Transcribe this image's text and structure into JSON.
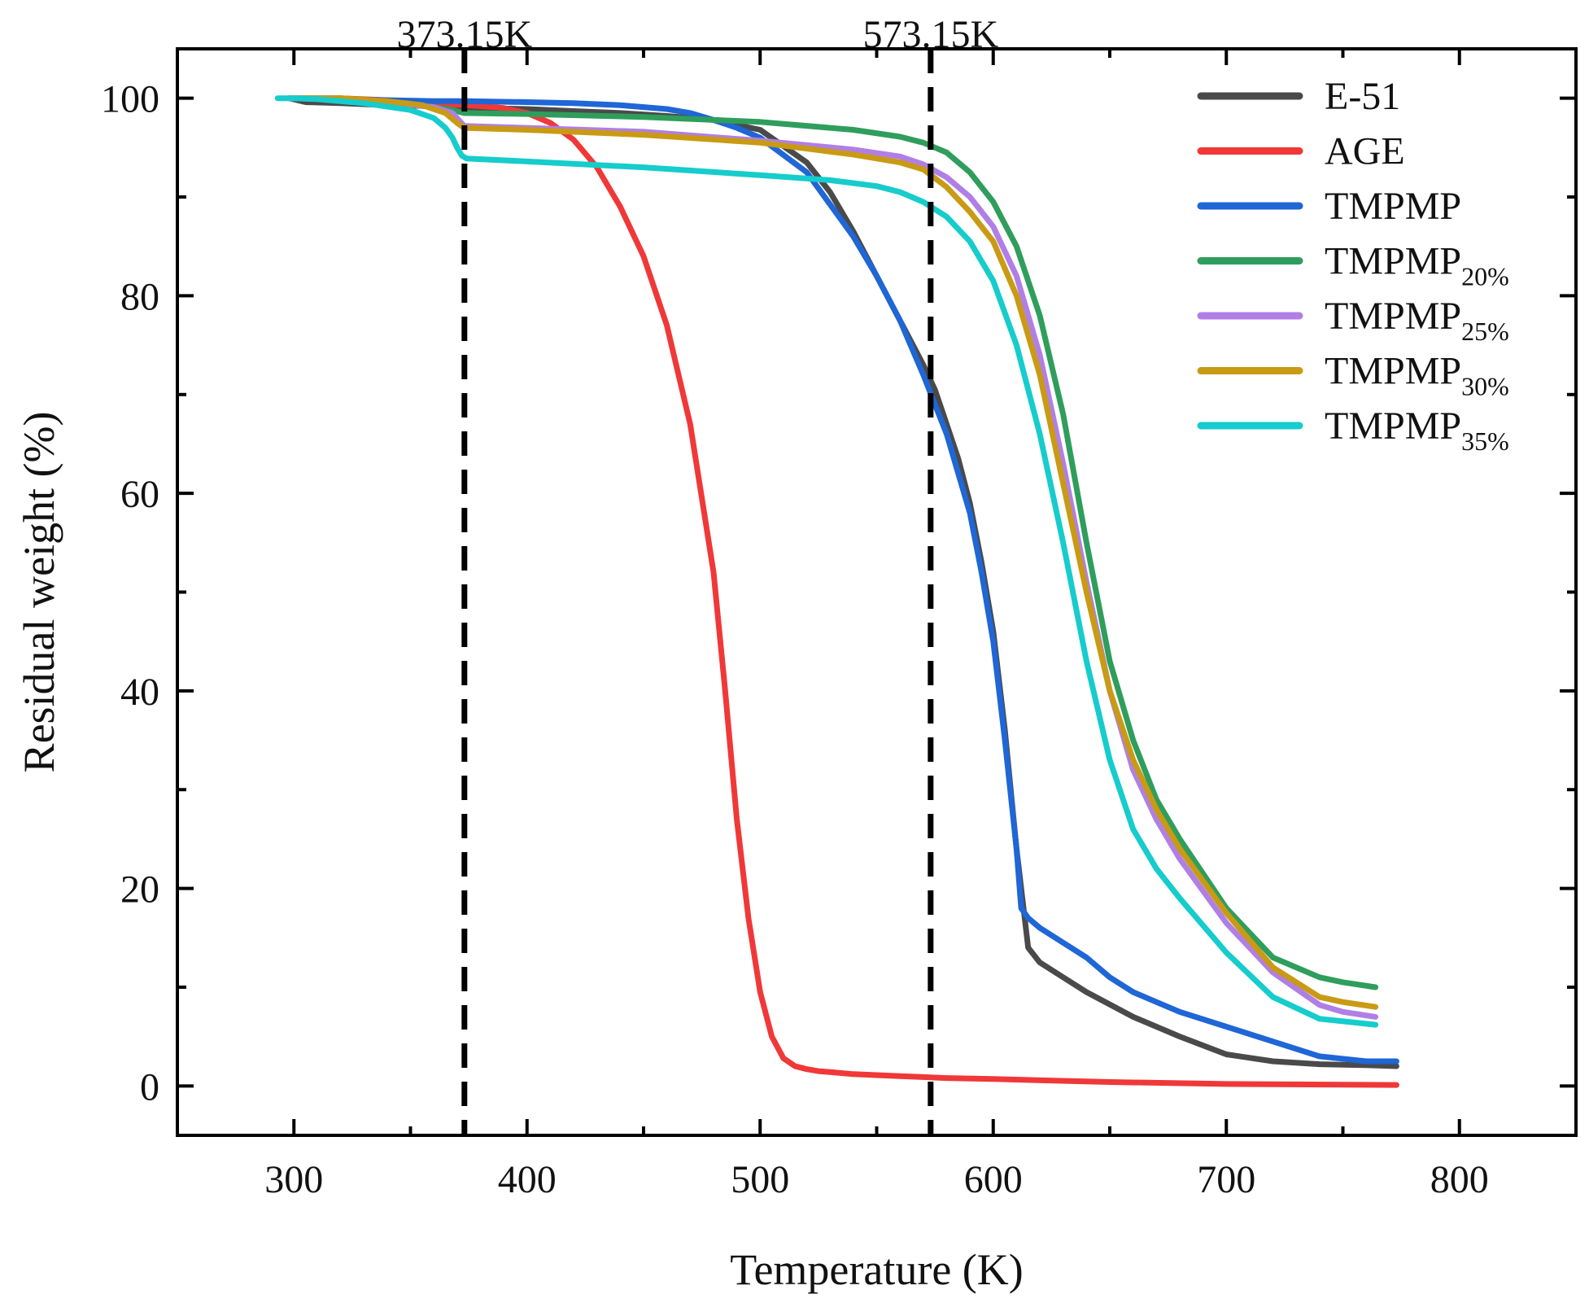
{
  "chart_data": {
    "type": "line",
    "title": "",
    "xlabel": "Temperature (K)",
    "ylabel": "Residual weight (%)",
    "xlim": [
      250,
      850
    ],
    "ylim": [
      -5,
      105
    ],
    "xticks": [
      300,
      400,
      500,
      600,
      700,
      800
    ],
    "yticks": [
      0,
      20,
      40,
      60,
      80,
      100
    ],
    "grid": false,
    "legend_position": "top-right",
    "vlines": [
      {
        "x": 373.15,
        "label": "373.15K"
      },
      {
        "x": 573.15,
        "label": "573.15K"
      }
    ],
    "series": [
      {
        "name": "E-51",
        "label_main": "E-51",
        "label_sub": "",
        "color": "#4a4a4a",
        "x": [
          298,
          305,
          320,
          340,
          360,
          373,
          380,
          400,
          420,
          440,
          460,
          480,
          500,
          520,
          530,
          540,
          550,
          560,
          570,
          575,
          580,
          585,
          590,
          595,
          600,
          605,
          610,
          615,
          620,
          630,
          640,
          660,
          680,
          700,
          720,
          740,
          760,
          773
        ],
        "y": [
          100,
          99.6,
          99.5,
          99.3,
          99.2,
          99.1,
          99,
          98.9,
          98.7,
          98.5,
          98.2,
          97.8,
          96.8,
          93.5,
          90.5,
          86.5,
          82,
          77.5,
          73,
          70.5,
          67,
          63.5,
          59,
          53,
          46,
          36,
          24,
          14,
          12.5,
          11,
          9.5,
          7,
          5,
          3.2,
          2.5,
          2.2,
          2.1,
          2
        ]
      },
      {
        "name": "AGE",
        "label_main": "AGE",
        "label_sub": "",
        "color": "#f03838",
        "x": [
          298,
          320,
          340,
          360,
          373,
          380,
          390,
          400,
          410,
          420,
          430,
          440,
          450,
          460,
          470,
          480,
          485,
          490,
          495,
          500,
          505,
          510,
          515,
          520,
          525,
          530,
          540,
          560,
          580,
          600,
          650,
          700,
          773
        ],
        "y": [
          100,
          100,
          99.8,
          99.5,
          99.3,
          99.2,
          99,
          98.5,
          97.5,
          95.8,
          93,
          89,
          84,
          77,
          67,
          52,
          40,
          27,
          17,
          9.5,
          5,
          2.8,
          2,
          1.7,
          1.5,
          1.4,
          1.2,
          1,
          0.8,
          0.7,
          0.4,
          0.2,
          0.1
        ]
      },
      {
        "name": "TMPMP",
        "label_main": "TMPMP",
        "label_sub": "",
        "color": "#1f66d6",
        "x": [
          298,
          320,
          340,
          360,
          373,
          400,
          420,
          440,
          460,
          470,
          480,
          490,
          500,
          520,
          540,
          550,
          560,
          570,
          575,
          580,
          585,
          590,
          595,
          600,
          605,
          610,
          612,
          615,
          620,
          630,
          640,
          650,
          660,
          670,
          680,
          700,
          720,
          740,
          760,
          773
        ],
        "y": [
          100,
          99.9,
          99.8,
          99.7,
          99.7,
          99.6,
          99.5,
          99.3,
          98.9,
          98.5,
          97.8,
          97,
          96,
          92.5,
          86,
          82,
          77.5,
          72,
          69,
          66,
          62,
          58,
          52,
          45,
          35,
          24,
          18,
          17,
          16,
          14.5,
          13,
          11,
          9.5,
          8.5,
          7.5,
          6,
          4.5,
          3,
          2.5,
          2.5
        ]
      },
      {
        "name": "TMPMP20%",
        "label_main": "TMPMP",
        "label_sub": "20%",
        "color": "#2f9e5c",
        "x": [
          298,
          320,
          340,
          360,
          368,
          373,
          400,
          450,
          500,
          540,
          560,
          570,
          580,
          590,
          600,
          610,
          620,
          630,
          640,
          650,
          660,
          670,
          680,
          700,
          720,
          740,
          750,
          764
        ],
        "y": [
          100,
          100,
          99.6,
          99.1,
          98.8,
          98.5,
          98.4,
          98.1,
          97.6,
          96.8,
          96.1,
          95.5,
          94.5,
          92.5,
          89.5,
          85,
          78,
          68,
          55,
          43,
          35,
          29,
          25,
          18,
          13,
          11,
          10.5,
          10
        ]
      },
      {
        "name": "TMPMP25%",
        "label_main": "TMPMP",
        "label_sub": "25%",
        "color": "#b07fe6",
        "x": [
          298,
          320,
          340,
          360,
          368,
          373,
          400,
          450,
          500,
          540,
          560,
          570,
          580,
          590,
          600,
          610,
          620,
          630,
          640,
          650,
          660,
          670,
          680,
          700,
          720,
          740,
          750,
          764
        ],
        "y": [
          100,
          100,
          99.6,
          99.1,
          98.5,
          97.2,
          97,
          96.6,
          95.7,
          94.8,
          94.1,
          93.3,
          92,
          90,
          87,
          82,
          74,
          63,
          51,
          40,
          32,
          27,
          23,
          16.5,
          11.5,
          8.2,
          7.5,
          7
        ]
      },
      {
        "name": "TMPMP30%",
        "label_main": "TMPMP",
        "label_sub": "30%",
        "color": "#c99a14",
        "x": [
          298,
          320,
          340,
          355,
          365,
          370,
          373,
          400,
          450,
          500,
          540,
          560,
          570,
          580,
          590,
          600,
          610,
          620,
          630,
          640,
          650,
          660,
          670,
          680,
          700,
          720,
          740,
          750,
          764
        ],
        "y": [
          100,
          100,
          99.7,
          99.3,
          98.5,
          97.5,
          97,
          96.8,
          96.3,
          95.5,
          94.3,
          93.5,
          92.8,
          91,
          88.5,
          85.5,
          80,
          72,
          61,
          50,
          40,
          33,
          28,
          24,
          17.5,
          12,
          9,
          8.5,
          8
        ]
      },
      {
        "name": "TMPMP35%",
        "label_main": "TMPMP",
        "label_sub": "35%",
        "color": "#16cccc",
        "x": [
          293,
          300,
          310,
          330,
          350,
          360,
          365,
          368,
          370,
          372,
          374,
          400,
          450,
          500,
          530,
          550,
          560,
          570,
          580,
          590,
          600,
          610,
          620,
          630,
          640,
          650,
          660,
          670,
          680,
          700,
          720,
          740,
          764
        ],
        "y": [
          100,
          100,
          99.9,
          99.5,
          98.8,
          98,
          97,
          96,
          95,
          94.2,
          93.9,
          93.6,
          93,
          92.2,
          91.7,
          91.1,
          90.5,
          89.5,
          88,
          85.5,
          81.5,
          75,
          66,
          55,
          43,
          33,
          26,
          22,
          19,
          13.5,
          9,
          6.8,
          6.2
        ]
      }
    ]
  }
}
